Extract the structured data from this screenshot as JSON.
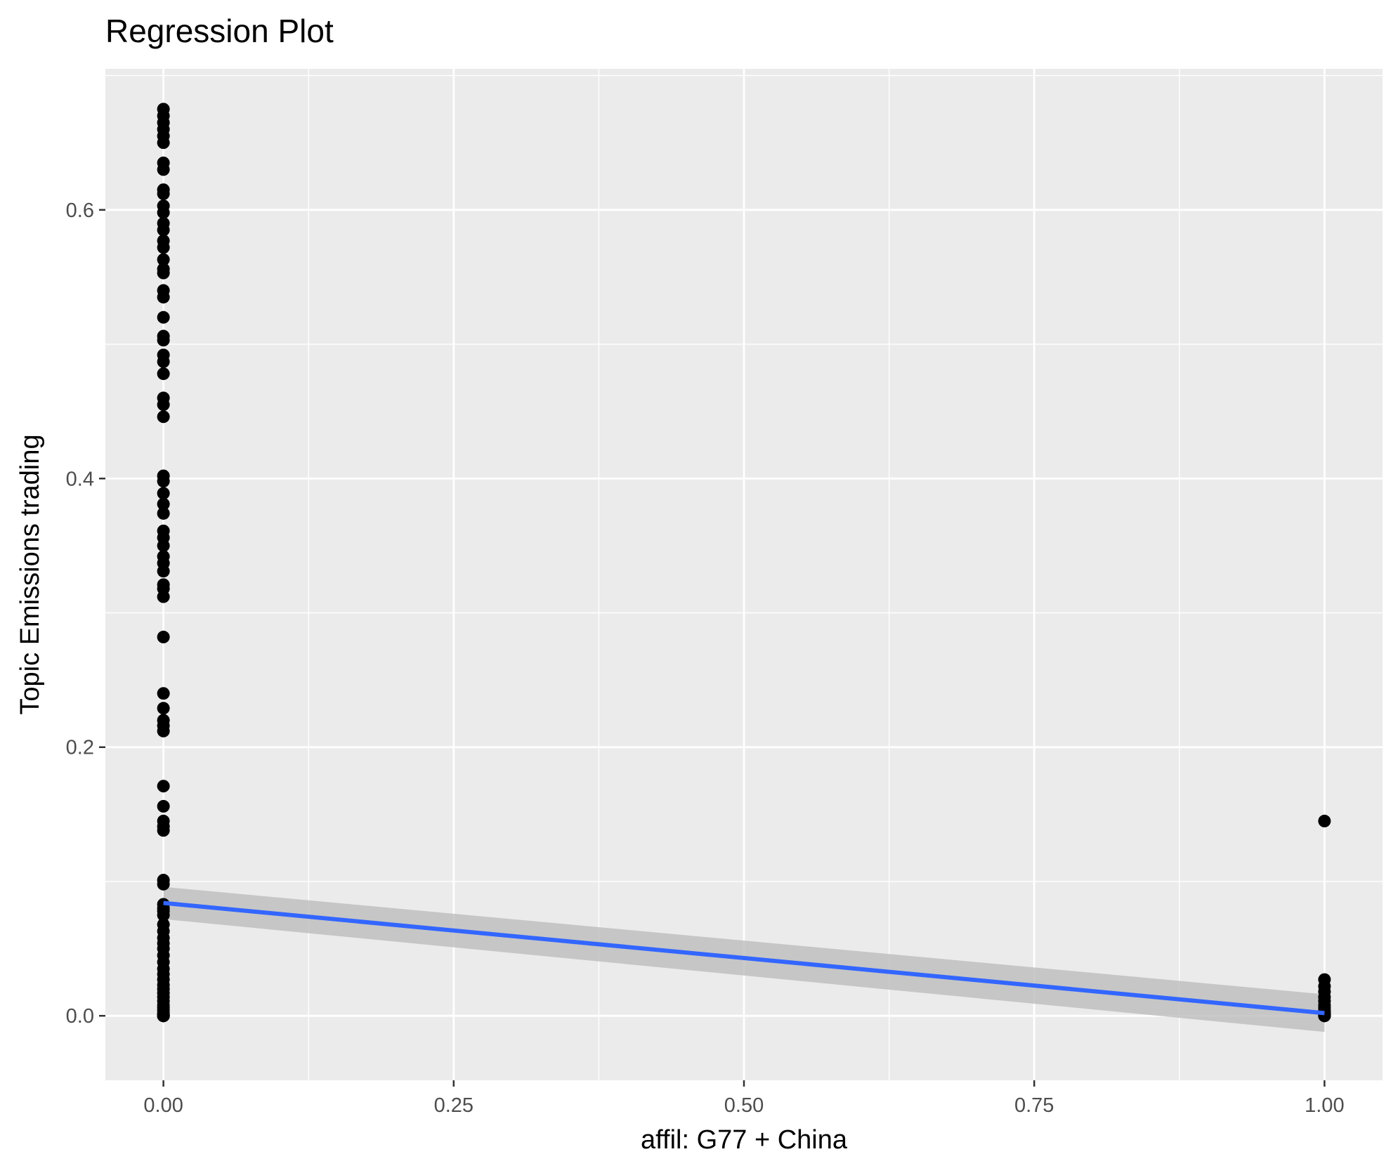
{
  "chart_data": {
    "type": "scatter",
    "title": "Regression Plot",
    "xlabel": "affil: G77 + China",
    "ylabel": "Topic Emissions trading",
    "xlim": [
      -0.05,
      1.05
    ],
    "ylim": [
      -0.048,
      0.705
    ],
    "x_ticks": [
      0.0,
      0.25,
      0.5,
      0.75,
      1.0
    ],
    "x_tick_labels": [
      "0.00",
      "0.25",
      "0.50",
      "0.75",
      "1.00"
    ],
    "y_ticks": [
      0.0,
      0.2,
      0.4,
      0.6
    ],
    "y_tick_labels": [
      "0.0",
      "0.2",
      "0.4",
      "0.6"
    ],
    "grid": true,
    "legend": "none",
    "colors": {
      "panel": "#ebebeb",
      "grid": "#ffffff",
      "points": "#000000",
      "fit_line": "#3366ff",
      "confidence_band": "#bdbdbd"
    },
    "series": [
      {
        "kind": "points",
        "x": [
          0,
          0,
          0,
          0,
          0,
          0,
          0,
          0,
          0,
          0,
          0,
          0,
          0,
          0,
          0,
          0,
          0,
          0,
          0,
          0,
          0,
          0,
          0,
          0,
          0,
          0,
          0,
          0,
          0,
          0,
          0,
          0,
          0,
          0,
          0,
          0,
          0,
          0,
          0,
          0,
          0,
          0,
          0,
          0,
          0,
          0,
          0,
          0,
          0,
          0,
          0,
          0,
          0,
          0,
          0,
          0,
          0,
          0,
          0,
          0,
          0,
          0,
          0,
          0,
          0,
          0,
          0,
          0,
          0,
          0,
          0,
          0,
          0,
          0,
          0,
          0,
          0,
          0,
          0,
          0,
          0,
          0,
          0,
          0,
          0,
          0,
          0,
          0,
          1,
          1,
          1,
          1,
          1,
          1,
          1,
          1,
          1,
          1,
          1,
          1,
          1,
          1,
          1,
          1,
          1
        ],
        "y": [
          0.675,
          0.67,
          0.665,
          0.66,
          0.655,
          0.65,
          0.635,
          0.63,
          0.615,
          0.612,
          0.603,
          0.598,
          0.59,
          0.585,
          0.577,
          0.572,
          0.563,
          0.556,
          0.553,
          0.54,
          0.535,
          0.52,
          0.506,
          0.503,
          0.492,
          0.487,
          0.478,
          0.46,
          0.455,
          0.446,
          0.402,
          0.398,
          0.389,
          0.381,
          0.374,
          0.361,
          0.356,
          0.35,
          0.342,
          0.337,
          0.331,
          0.321,
          0.318,
          0.312,
          0.282,
          0.24,
          0.229,
          0.22,
          0.216,
          0.212,
          0.171,
          0.156,
          0.145,
          0.141,
          0.138,
          0.101,
          0.098,
          0.083,
          0.08,
          0.078,
          0.075,
          0.068,
          0.063,
          0.058,
          0.054,
          0.05,
          0.045,
          0.04,
          0.035,
          0.031,
          0.027,
          0.023,
          0.02,
          0.017,
          0.014,
          0.011,
          0.008,
          0.006,
          0.004,
          0.002,
          0.001,
          0.0,
          0.0,
          0.0,
          0.0,
          0.0,
          0.0,
          0.0,
          0.145,
          0.027,
          0.022,
          0.018,
          0.014,
          0.011,
          0.008,
          0.006,
          0.004,
          0.003,
          0.002,
          0.001,
          0.001,
          0.0,
          0.0,
          0.0,
          0.0
        ]
      },
      {
        "kind": "regression",
        "x": [
          0,
          1
        ],
        "y": [
          0.084,
          0.002
        ],
        "ci_lower": [
          0.072,
          -0.012
        ],
        "ci_upper": [
          0.096,
          0.016
        ]
      }
    ]
  }
}
